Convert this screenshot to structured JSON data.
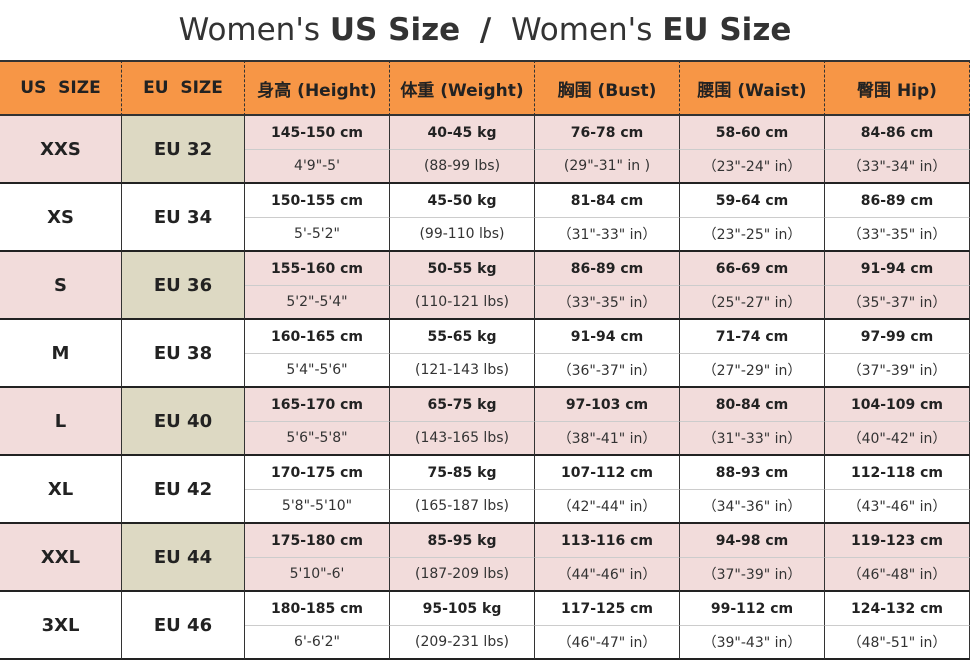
{
  "header": {
    "title": {
      "part1": "Women's",
      "bold1": "US Size",
      "separator": "/",
      "part2": "Women's",
      "bold2": "EU Size"
    }
  },
  "table": {
    "columns": [
      "US  SIZE",
      "EU  SIZE",
      "身高 (Height)",
      "体重 (Weight)",
      "胸围 (Bust)",
      "腰围 (Waist)",
      "臀围 Hip)"
    ],
    "rows": [
      {
        "us": "XXS",
        "eu": "EU 32",
        "cells": [
          [
            "145-150 cm",
            "4'9\"-5'"
          ],
          [
            "40-45 kg",
            "(88-99 lbs)"
          ],
          [
            "76-78 cm",
            "(29\"-31\" in )"
          ],
          [
            "58-60 cm",
            "（23\"-24\" in）"
          ],
          [
            "84-86 cm",
            "（33\"-34\" in）"
          ]
        ]
      },
      {
        "us": "XS",
        "eu": "EU 34",
        "cells": [
          [
            "150-155 cm",
            "5'-5'2\""
          ],
          [
            "45-50 kg",
            "(99-110 lbs)"
          ],
          [
            "81-84 cm",
            "（31\"-33\" in）"
          ],
          [
            "59-64 cm",
            "（23\"-25\" in）"
          ],
          [
            "86-89 cm",
            "（33\"-35\" in）"
          ]
        ]
      },
      {
        "us": "S",
        "eu": "EU 36",
        "cells": [
          [
            "155-160 cm",
            "5'2\"-5'4\""
          ],
          [
            "50-55 kg",
            "(110-121 lbs)"
          ],
          [
            "86-89 cm",
            "（33\"-35\" in）"
          ],
          [
            "66-69 cm",
            "（25\"-27\" in）"
          ],
          [
            "91-94 cm",
            "（35\"-37\" in）"
          ]
        ]
      },
      {
        "us": "M",
        "eu": "EU 38",
        "cells": [
          [
            "160-165 cm",
            "5'4\"-5'6\""
          ],
          [
            "55-65 kg",
            "(121-143 lbs)"
          ],
          [
            "91-94 cm",
            "（36\"-37\" in）"
          ],
          [
            "71-74 cm",
            "（27\"-29\" in）"
          ],
          [
            "97-99 cm",
            "（37\"-39\" in）"
          ]
        ]
      },
      {
        "us": "L",
        "eu": "EU 40",
        "cells": [
          [
            "165-170 cm",
            "5'6\"-5'8\""
          ],
          [
            "65-75 kg",
            "(143-165 lbs)"
          ],
          [
            "97-103 cm",
            "（38\"-41\" in）"
          ],
          [
            "80-84 cm",
            "（31\"-33\" in）"
          ],
          [
            "104-109 cm",
            "（40\"-42\" in）"
          ]
        ]
      },
      {
        "us": "XL",
        "eu": "EU 42",
        "cells": [
          [
            "170-175 cm",
            "5'8\"-5'10\""
          ],
          [
            "75-85 kg",
            "(165-187 lbs)"
          ],
          [
            "107-112 cm",
            "（42\"-44\" in）"
          ],
          [
            "88-93 cm",
            "（34\"-36\" in）"
          ],
          [
            "112-118 cm",
            "（43\"-46\" in）"
          ]
        ]
      },
      {
        "us": "XXL",
        "eu": "EU 44",
        "cells": [
          [
            "175-180 cm",
            "5'10\"-6'"
          ],
          [
            "85-95 kg",
            "(187-209 lbs)"
          ],
          [
            "113-116 cm",
            "（44\"-46\" in）"
          ],
          [
            "94-98 cm",
            "（37\"-39\" in）"
          ],
          [
            "119-123 cm",
            "（46\"-48\" in）"
          ]
        ]
      },
      {
        "us": "3XL",
        "eu": "EU 46",
        "cells": [
          [
            "180-185 cm",
            "6'-6'2\""
          ],
          [
            "95-105 kg",
            "(209-231 lbs)"
          ],
          [
            "117-125 cm",
            "（46\"-47\" in）"
          ],
          [
            "99-112 cm",
            "（39\"-43\" in）"
          ],
          [
            "124-132 cm",
            "（48\"-51\" in）"
          ]
        ]
      }
    ]
  }
}
